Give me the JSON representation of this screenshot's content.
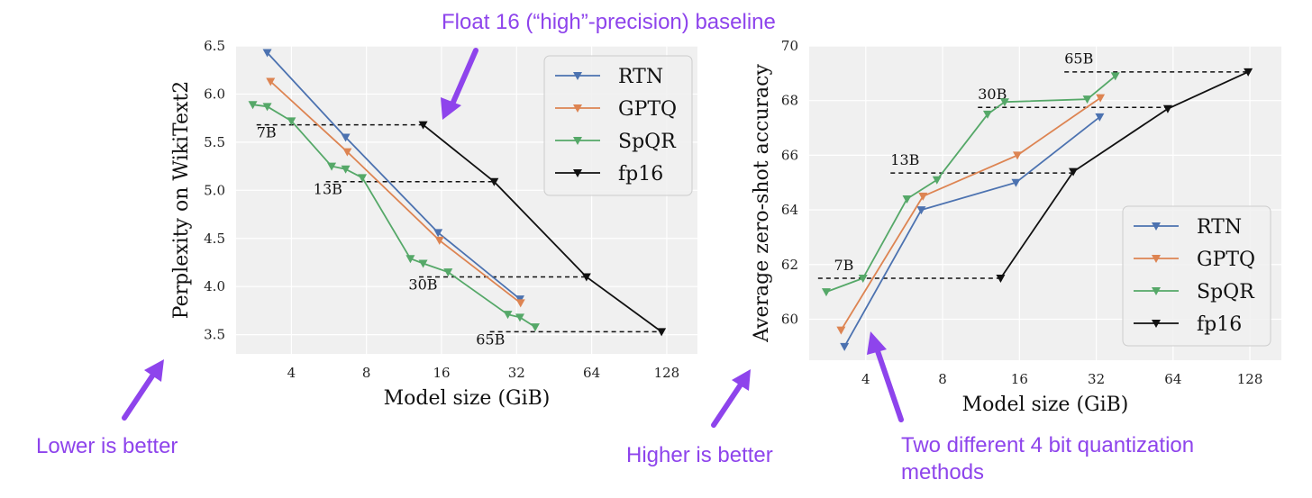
{
  "colors": {
    "RTN": "#4c72b0",
    "GPTQ": "#dd8452",
    "SpQR": "#55a868",
    "fp16": "#111111",
    "annotation": "#8e44ec",
    "panel_bg": "#f0f0f0"
  },
  "annotations": {
    "top": "Float 16 (“high”-precision) baseline",
    "lower_better": "Lower is better",
    "higher_better": "Higher is better",
    "two_methods_line1": "Two different 4 bit quantization",
    "two_methods_line2": "methods"
  },
  "chart_data": [
    {
      "type": "line",
      "xlabel": "Model size (GiB)",
      "ylabel": "Perplexity on WikiText2",
      "xscale": "log2",
      "xlim": [
        2.4,
        170
      ],
      "ylim": [
        3.3,
        6.5
      ],
      "xticks": [
        4,
        8,
        16,
        32,
        64,
        128
      ],
      "xtick_labels": [
        "4",
        "8",
        "16",
        "32",
        "64",
        "128"
      ],
      "yticks": [
        3.5,
        4.0,
        4.5,
        5.0,
        5.5,
        6.0,
        6.5
      ],
      "ytick_labels": [
        "3.5",
        "4.0",
        "4.5",
        "5.0",
        "5.5",
        "6.0",
        "6.5"
      ],
      "legend": {
        "placement": "top-right",
        "entries": [
          "RTN",
          "GPTQ",
          "SpQR",
          "fp16"
        ]
      },
      "series": [
        {
          "name": "RTN",
          "x": [
            3.2,
            6.6,
            15.5,
            33.0
          ],
          "y": [
            6.43,
            5.55,
            4.56,
            3.87
          ]
        },
        {
          "name": "GPTQ",
          "x": [
            3.3,
            6.7,
            15.7,
            33.2
          ],
          "y": [
            6.13,
            5.4,
            4.48,
            3.83
          ]
        },
        {
          "name": "SpQR",
          "x": [
            2.8,
            3.2,
            4.0,
            5.8,
            6.6,
            7.7,
            12.0,
            13.5,
            17.0,
            29.5,
            33.0,
            38.0
          ],
          "y": [
            5.89,
            5.87,
            5.72,
            5.25,
            5.22,
            5.13,
            4.29,
            4.24,
            4.15,
            3.71,
            3.68,
            3.58
          ]
        },
        {
          "name": "fp16",
          "x": [
            13.5,
            26.0,
            61.0,
            122.0
          ],
          "y": [
            5.68,
            5.09,
            4.1,
            3.53
          ]
        }
      ],
      "size_markers": [
        {
          "label": "7B",
          "y": 5.68,
          "x_from": 2.9,
          "x_to": 13.5,
          "label_x": 2.9,
          "label_y": 5.55
        },
        {
          "label": "13B",
          "y": 5.09,
          "x_from": 5.5,
          "x_to": 26.0,
          "label_x": 4.9,
          "label_y": 4.96
        },
        {
          "label": "30B",
          "y": 4.1,
          "x_from": 13.0,
          "x_to": 61.0,
          "label_x": 11.8,
          "label_y": 3.97
        },
        {
          "label": "65B",
          "y": 3.53,
          "x_from": 25.0,
          "x_to": 122.0,
          "label_x": 22.0,
          "label_y": 3.4
        }
      ]
    },
    {
      "type": "line",
      "xlabel": "Model size (GiB)",
      "ylabel": "Average zero-shot accuracy",
      "xscale": "log2",
      "xlim": [
        2.4,
        170
      ],
      "ylim": [
        58.5,
        70
      ],
      "xticks": [
        4,
        8,
        16,
        32,
        64,
        128
      ],
      "xtick_labels": [
        "4",
        "8",
        "16",
        "32",
        "64",
        "128"
      ],
      "yticks": [
        60,
        62,
        64,
        66,
        68,
        70
      ],
      "ytick_labels": [
        "60",
        "62",
        "64",
        "66",
        "68",
        "70"
      ],
      "legend": {
        "placement": "bottom-right",
        "entries": [
          "RTN",
          "GPTQ",
          "SpQR",
          "fp16"
        ]
      },
      "series": [
        {
          "name": "RTN",
          "x": [
            3.3,
            6.6,
            15.5,
            33.0
          ],
          "y": [
            59.0,
            64.0,
            65.0,
            67.4
          ]
        },
        {
          "name": "GPTQ",
          "x": [
            3.2,
            6.7,
            15.7,
            33.2
          ],
          "y": [
            59.6,
            64.5,
            66.0,
            68.1
          ]
        },
        {
          "name": "SpQR",
          "x": [
            2.8,
            3.9,
            5.8,
            7.6,
            12.0,
            14.0,
            29.5,
            38.0
          ],
          "y": [
            61.0,
            61.5,
            64.4,
            65.1,
            67.5,
            67.95,
            68.05,
            68.9
          ]
        },
        {
          "name": "fp16",
          "x": [
            13.5,
            26.0,
            61.0,
            126.0
          ],
          "y": [
            61.5,
            65.4,
            67.7,
            69.05
          ]
        }
      ],
      "size_markers": [
        {
          "label": "7B",
          "y": 61.5,
          "x_from": 2.6,
          "x_to": 13.5,
          "label_x": 3.0,
          "label_y": 61.8
        },
        {
          "label": "13B",
          "y": 65.35,
          "x_from": 5.0,
          "x_to": 26.0,
          "label_x": 5.0,
          "label_y": 65.65
        },
        {
          "label": "30B",
          "y": 67.75,
          "x_from": 11.0,
          "x_to": 61.0,
          "label_x": 11.0,
          "label_y": 68.05
        },
        {
          "label": "65B",
          "y": 69.05,
          "x_from": 24.0,
          "x_to": 126.0,
          "label_x": 24.0,
          "label_y": 69.35
        }
      ]
    }
  ]
}
